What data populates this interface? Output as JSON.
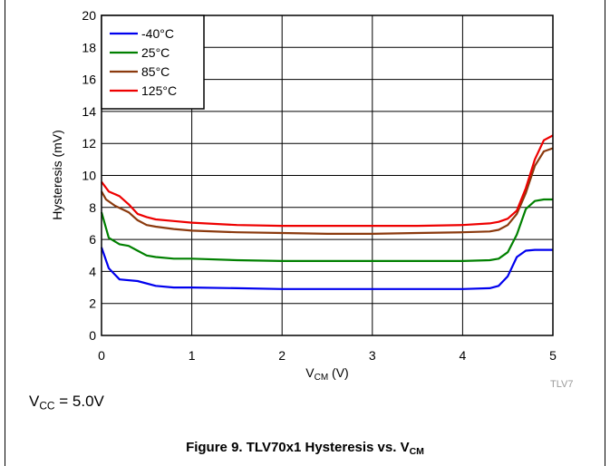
{
  "chart_data": {
    "type": "line",
    "xlabel_main": "V",
    "xlabel_sub": "CM",
    "xlabel_unit": " (V)",
    "ylabel": "Hysteresis (mV)",
    "xlim": [
      0,
      5
    ],
    "ylim": [
      0,
      20
    ],
    "x_ticks": [
      "0",
      "1",
      "2",
      "3",
      "4",
      "5"
    ],
    "y_ticks": [
      "0",
      "2",
      "4",
      "6",
      "8",
      "10",
      "12",
      "14",
      "16",
      "18",
      "20"
    ],
    "grid": true,
    "legend_position": "top-left",
    "series": [
      {
        "name": "-40°C",
        "color": "#0000ee",
        "x": [
          0,
          0.08,
          0.2,
          0.4,
          0.6,
          0.8,
          1,
          1.5,
          2,
          2.5,
          3,
          3.5,
          4,
          4.3,
          4.4,
          4.5,
          4.6,
          4.7,
          4.8,
          4.9,
          5
        ],
        "y": [
          5.5,
          4.2,
          3.5,
          3.4,
          3.1,
          3.0,
          3.0,
          2.95,
          2.9,
          2.9,
          2.9,
          2.9,
          2.9,
          2.95,
          3.1,
          3.7,
          4.9,
          5.3,
          5.35,
          5.35,
          5.35
        ]
      },
      {
        "name": "25°C",
        "color": "#008000",
        "x": [
          0,
          0.08,
          0.2,
          0.3,
          0.4,
          0.5,
          0.6,
          0.8,
          1,
          1.5,
          2,
          2.5,
          3,
          3.5,
          4,
          4.3,
          4.4,
          4.5,
          4.6,
          4.7,
          4.8,
          4.9,
          5
        ],
        "y": [
          7.7,
          6.1,
          5.7,
          5.6,
          5.3,
          5.0,
          4.9,
          4.8,
          4.8,
          4.7,
          4.65,
          4.65,
          4.65,
          4.65,
          4.65,
          4.7,
          4.8,
          5.2,
          6.3,
          7.9,
          8.4,
          8.5,
          8.5
        ]
      },
      {
        "name": "85°C",
        "color": "#8b3a0e",
        "x": [
          0,
          0.05,
          0.15,
          0.3,
          0.4,
          0.5,
          0.6,
          0.8,
          1,
          1.5,
          2,
          2.5,
          3,
          3.5,
          4,
          4.3,
          4.4,
          4.5,
          4.6,
          4.7,
          4.8,
          4.9,
          5
        ],
        "y": [
          9.0,
          8.5,
          8.1,
          7.7,
          7.2,
          6.9,
          6.8,
          6.65,
          6.55,
          6.45,
          6.4,
          6.35,
          6.35,
          6.4,
          6.45,
          6.5,
          6.6,
          6.9,
          7.6,
          8.9,
          10.6,
          11.5,
          11.7
        ]
      },
      {
        "name": "125°C",
        "color": "#ee0000",
        "x": [
          0,
          0.08,
          0.2,
          0.3,
          0.4,
          0.5,
          0.6,
          0.8,
          1,
          1.5,
          2,
          2.5,
          3,
          3.5,
          4,
          4.3,
          4.4,
          4.5,
          4.6,
          4.7,
          4.8,
          4.9,
          5
        ],
        "y": [
          9.6,
          9.0,
          8.7,
          8.2,
          7.6,
          7.4,
          7.25,
          7.15,
          7.05,
          6.9,
          6.85,
          6.85,
          6.85,
          6.85,
          6.9,
          7.0,
          7.1,
          7.3,
          7.8,
          9.2,
          11.0,
          12.2,
          12.5
        ]
      }
    ]
  },
  "figure_code": "TLV7",
  "condition": {
    "main": "V",
    "sub": "CC",
    "rest": " = 5.0V"
  },
  "caption": {
    "main": "Figure 9. TLV70x1 Hysteresis vs. V",
    "sub": "CM"
  }
}
